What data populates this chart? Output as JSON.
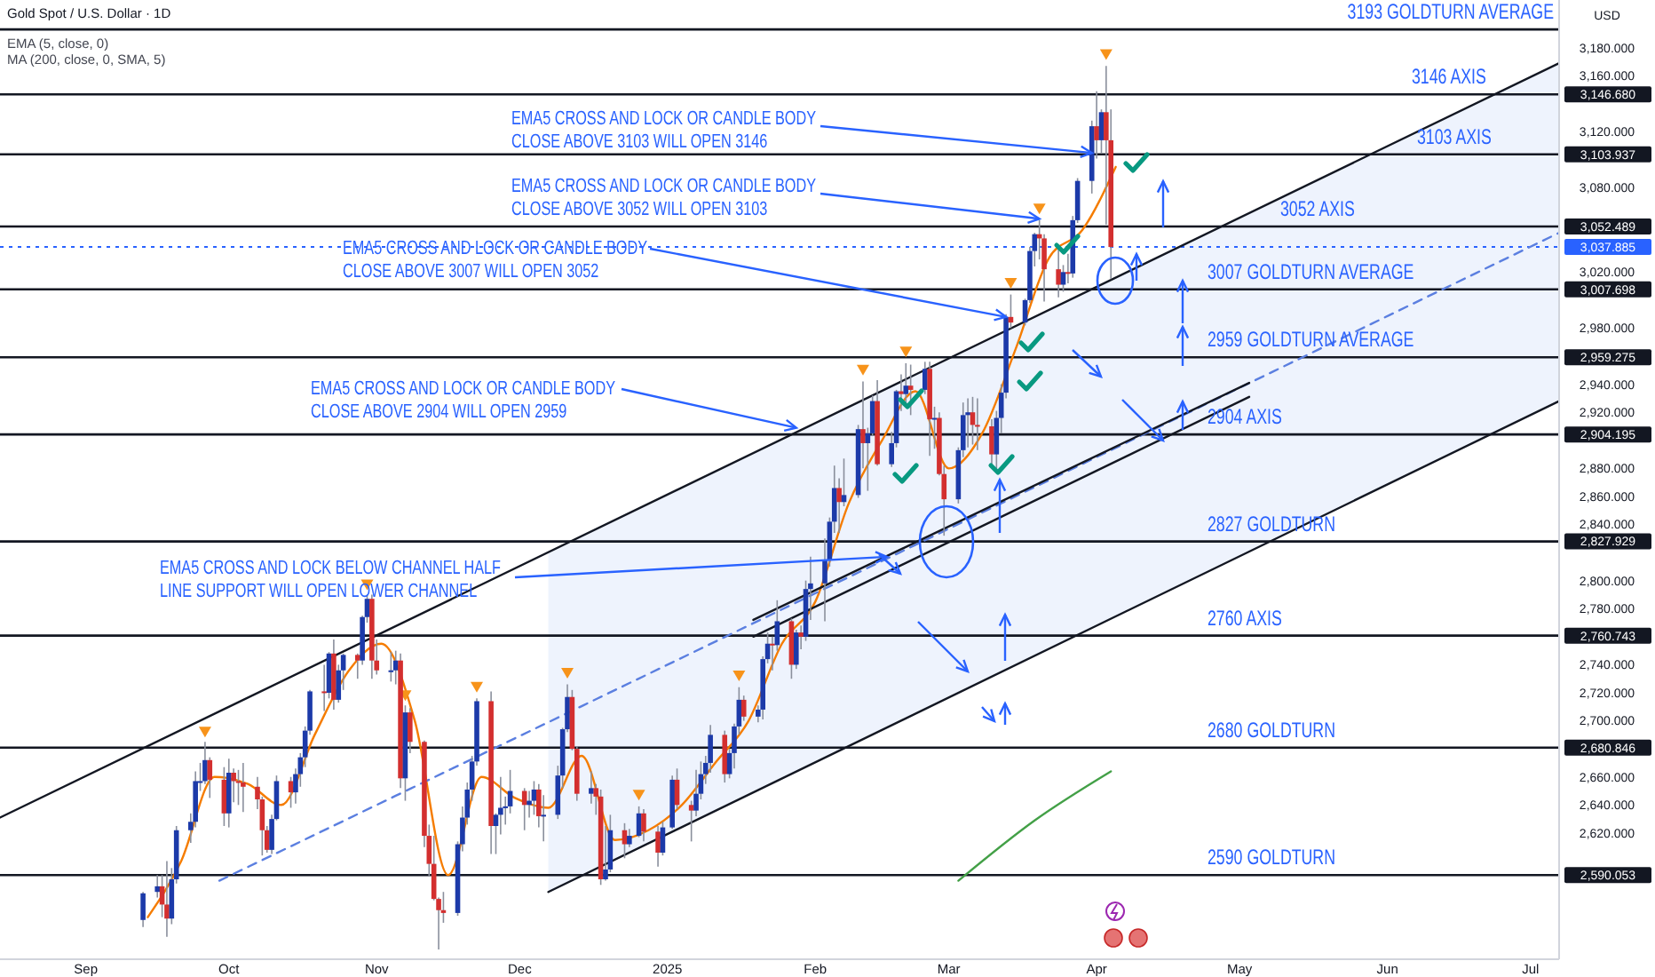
{
  "chart_data": {
    "type": "candlestick",
    "title": "Gold Spot / U.S. Dollar · 1D",
    "annotations": [
      "EMA (5, close, 0)",
      "MA (200, close, 0, SMA, 5)",
      {
        "text": "EMA5 CROSS AND LOCK OR CANDLE BODY\nCLOSE ABOVE 3103 WILL OPEN 3146",
        "x": "2025-03-31",
        "y": 3105
      },
      {
        "text": "EMA5 CROSS AND LOCK OR CANDLE BODY\nCLOSE ABOVE 3052 WILL OPEN 3103",
        "x": "2025-03-20",
        "y": 3058
      },
      {
        "text": "EMA5 CROSS AND LOCK OR CANDLE BODY\nCLOSE ABOVE 3007 WILL OPEN 3052",
        "x": "2025-03-13",
        "y": 2988
      },
      {
        "text": "EMA5 CROSS AND LOCK OR CANDLE BODY\nCLOSE ABOVE 2904 WILL OPEN 2959",
        "x": "2025-01-28",
        "y": 2909
      },
      {
        "text": "EMA5 CROSS AND LOCK BELOW CHANNEL HALF\nLINE SUPPORT WILL OPEN LOWER CHANNEL",
        "x": "2025-02-16",
        "y": 2817
      }
    ],
    "x": [
      "2024-09-13",
      "2024-09-16",
      "2024-09-17",
      "2024-09-18",
      "2024-09-19",
      "2024-09-20",
      "2024-09-23",
      "2024-09-24",
      "2024-09-25",
      "2024-09-26",
      "2024-09-27",
      "2024-09-30",
      "2024-10-01",
      "2024-10-02",
      "2024-10-03",
      "2024-10-04",
      "2024-10-07",
      "2024-10-08",
      "2024-10-09",
      "2024-10-10",
      "2024-10-11",
      "2024-10-14",
      "2024-10-15",
      "2024-10-16",
      "2024-10-17",
      "2024-10-18",
      "2024-10-21",
      "2024-10-22",
      "2024-10-23",
      "2024-10-24",
      "2024-10-25",
      "2024-10-28",
      "2024-10-29",
      "2024-10-30",
      "2024-10-31",
      "2024-11-01",
      "2024-11-04",
      "2024-11-05",
      "2024-11-06",
      "2024-11-07",
      "2024-11-08",
      "2024-11-11",
      "2024-11-12",
      "2024-11-13",
      "2024-11-14",
      "2024-11-15",
      "2024-11-18",
      "2024-11-19",
      "2024-11-20",
      "2024-11-21",
      "2024-11-22",
      "2024-11-25",
      "2024-11-26",
      "2024-11-27",
      "2024-11-28",
      "2024-11-29",
      "2024-12-02",
      "2024-12-03",
      "2024-12-04",
      "2024-12-05",
      "2024-12-06",
      "2024-12-09",
      "2024-12-10",
      "2024-12-11",
      "2024-12-12",
      "2024-12-13",
      "2024-12-16",
      "2024-12-17",
      "2024-12-18",
      "2024-12-19",
      "2024-12-20",
      "2024-12-23",
      "2024-12-24",
      "2024-12-26",
      "2024-12-27",
      "2024-12-30",
      "2024-12-31",
      "2025-01-02",
      "2025-01-03",
      "2025-01-06",
      "2025-01-07",
      "2025-01-08",
      "2025-01-09",
      "2025-01-10",
      "2025-01-13",
      "2025-01-14",
      "2025-01-15",
      "2025-01-16",
      "2025-01-17",
      "2025-01-20",
      "2025-01-21",
      "2025-01-22",
      "2025-01-23",
      "2025-01-24",
      "2025-01-27",
      "2025-01-28",
      "2025-01-29",
      "2025-01-30",
      "2025-01-31",
      "2025-02-03",
      "2025-02-04",
      "2025-02-05",
      "2025-02-06",
      "2025-02-07",
      "2025-02-10",
      "2025-02-11",
      "2025-02-12",
      "2025-02-13",
      "2025-02-14",
      "2025-02-17",
      "2025-02-18",
      "2025-02-19",
      "2025-02-20",
      "2025-02-21",
      "2025-02-24",
      "2025-02-25",
      "2025-02-26",
      "2025-02-27",
      "2025-02-28",
      "2025-03-03",
      "2025-03-04",
      "2025-03-05",
      "2025-03-06",
      "2025-03-07",
      "2025-03-10",
      "2025-03-11",
      "2025-03-12",
      "2025-03-13",
      "2025-03-14",
      "2025-03-17",
      "2025-03-18",
      "2025-03-19",
      "2025-03-20",
      "2025-03-21",
      "2025-03-24",
      "2025-03-25",
      "2025-03-26",
      "2025-03-27",
      "2025-03-28",
      "2025-03-31",
      "2025-04-01",
      "2025-04-02",
      "2025-04-03",
      "2025-04-04"
    ],
    "ohlc": [
      [
        2558,
        2578,
        2553,
        2577
      ],
      [
        2578,
        2590,
        2574,
        2582
      ],
      [
        2582,
        2590,
        2560,
        2569
      ],
      [
        2569,
        2600,
        2546,
        2559
      ],
      [
        2559,
        2595,
        2555,
        2587
      ],
      [
        2587,
        2625,
        2584,
        2622
      ],
      [
        2622,
        2634,
        2613,
        2628
      ],
      [
        2628,
        2664,
        2624,
        2657
      ],
      [
        2657,
        2670,
        2650,
        2657
      ],
      [
        2657,
        2685,
        2655,
        2672
      ],
      [
        2672,
        2674,
        2645,
        2658
      ],
      [
        2658,
        2667,
        2625,
        2634
      ],
      [
        2634,
        2673,
        2624,
        2663
      ],
      [
        2663,
        2666,
        2642,
        2657
      ],
      [
        2657,
        2665,
        2640,
        2656
      ],
      [
        2656,
        2670,
        2635,
        2653
      ],
      [
        2653,
        2660,
        2637,
        2644
      ],
      [
        2644,
        2646,
        2604,
        2622
      ],
      [
        2622,
        2625,
        2606,
        2608
      ],
      [
        2608,
        2633,
        2605,
        2630
      ],
      [
        2630,
        2661,
        2629,
        2657
      ],
      [
        2657,
        2660,
        2638,
        2649
      ],
      [
        2649,
        2666,
        2641,
        2662
      ],
      [
        2662,
        2677,
        2653,
        2674
      ],
      [
        2674,
        2696,
        2667,
        2693
      ],
      [
        2693,
        2722,
        2690,
        2721
      ],
      [
        2721,
        2740,
        2707,
        2720
      ],
      [
        2720,
        2749,
        2716,
        2748
      ],
      [
        2748,
        2758,
        2708,
        2715
      ],
      [
        2715,
        2740,
        2713,
        2736
      ],
      [
        2736,
        2748,
        2722,
        2747
      ],
      [
        2747,
        2748,
        2730,
        2743
      ],
      [
        2743,
        2775,
        2740,
        2774
      ],
      [
        2774,
        2790,
        2770,
        2787
      ],
      [
        2787,
        2790,
        2730,
        2743
      ],
      [
        2743,
        2758,
        2733,
        2736
      ],
      [
        2736,
        2749,
        2728,
        2736
      ],
      [
        2736,
        2750,
        2726,
        2743
      ],
      [
        2743,
        2748,
        2652,
        2659
      ],
      [
        2659,
        2711,
        2643,
        2706
      ],
      [
        2706,
        2709,
        2677,
        2685
      ],
      [
        2685,
        2686,
        2610,
        2618
      ],
      [
        2618,
        2626,
        2589,
        2598
      ],
      [
        2598,
        2618,
        2572,
        2573
      ],
      [
        2573,
        2574,
        2537,
        2565
      ],
      [
        2565,
        2578,
        2556,
        2563
      ],
      [
        2563,
        2614,
        2561,
        2612
      ],
      [
        2612,
        2639,
        2607,
        2631
      ],
      [
        2631,
        2656,
        2626,
        2651
      ],
      [
        2651,
        2675,
        2643,
        2671
      ],
      [
        2671,
        2716,
        2668,
        2714
      ],
      [
        2714,
        2721,
        2605,
        2625
      ],
      [
        2625,
        2634,
        2605,
        2633
      ],
      [
        2633,
        2660,
        2619,
        2638
      ],
      [
        2638,
        2646,
        2626,
        2639
      ],
      [
        2639,
        2665,
        2634,
        2650
      ],
      [
        2650,
        2652,
        2622,
        2640
      ],
      [
        2640,
        2650,
        2631,
        2643
      ],
      [
        2643,
        2657,
        2633,
        2651
      ],
      [
        2651,
        2655,
        2624,
        2632
      ],
      [
        2632,
        2647,
        2614,
        2633
      ],
      [
        2633,
        2668,
        2630,
        2661
      ],
      [
        2661,
        2695,
        2652,
        2694
      ],
      [
        2694,
        2726,
        2692,
        2717
      ],
      [
        2717,
        2722,
        2679,
        2680
      ],
      [
        2680,
        2682,
        2643,
        2648
      ],
      [
        2648,
        2664,
        2641,
        2652
      ],
      [
        2652,
        2655,
        2633,
        2646
      ],
      [
        2646,
        2651,
        2583,
        2587
      ],
      [
        2587,
        2625,
        2586,
        2594
      ],
      [
        2594,
        2633,
        2592,
        2622
      ],
      [
        2622,
        2627,
        2602,
        2612
      ],
      [
        2612,
        2623,
        2610,
        2618
      ],
      [
        2618,
        2639,
        2617,
        2634
      ],
      [
        2634,
        2637,
        2614,
        2621
      ],
      [
        2621,
        2625,
        2596,
        2606
      ],
      [
        2606,
        2628,
        2604,
        2624
      ],
      [
        2624,
        2661,
        2623,
        2658
      ],
      [
        2658,
        2666,
        2637,
        2640
      ],
      [
        2640,
        2643,
        2614,
        2636
      ],
      [
        2636,
        2665,
        2632,
        2648
      ],
      [
        2648,
        2671,
        2644,
        2662
      ],
      [
        2662,
        2675,
        2655,
        2670
      ],
      [
        2670,
        2697,
        2663,
        2690
      ],
      [
        2690,
        2693,
        2656,
        2662
      ],
      [
        2662,
        2680,
        2659,
        2677
      ],
      [
        2677,
        2698,
        2666,
        2696
      ],
      [
        2696,
        2724,
        2690,
        2715
      ],
      [
        2715,
        2718,
        2700,
        2703
      ],
      [
        2703,
        2711,
        2699,
        2708
      ],
      [
        2708,
        2746,
        2701,
        2744
      ],
      [
        2744,
        2763,
        2741,
        2755
      ],
      [
        2755,
        2760,
        2736,
        2754
      ],
      [
        2754,
        2786,
        2750,
        2771
      ],
      [
        2771,
        2773,
        2730,
        2740
      ],
      [
        2740,
        2765,
        2737,
        2763
      ],
      [
        2763,
        2768,
        2751,
        2760
      ],
      [
        2760,
        2800,
        2757,
        2794
      ],
      [
        2794,
        2817,
        2772,
        2798
      ],
      [
        2798,
        2830,
        2771,
        2815
      ],
      [
        2815,
        2845,
        2810,
        2842
      ],
      [
        2842,
        2882,
        2834,
        2866
      ],
      [
        2866,
        2873,
        2834,
        2856
      ],
      [
        2856,
        2887,
        2853,
        2861
      ],
      [
        2861,
        2911,
        2859,
        2908
      ],
      [
        2908,
        2942,
        2880,
        2898
      ],
      [
        2898,
        2909,
        2864,
        2905
      ],
      [
        2905,
        2932,
        2903,
        2928
      ],
      [
        2928,
        2943,
        2882,
        2883
      ],
      [
        2883,
        2906,
        2881,
        2898
      ],
      [
        2898,
        2936,
        2895,
        2935
      ],
      [
        2935,
        2947,
        2921,
        2933
      ],
      [
        2933,
        2955,
        2925,
        2939
      ],
      [
        2939,
        2954,
        2918,
        2936
      ],
      [
        2936,
        2956,
        2933,
        2951
      ],
      [
        2951,
        2956,
        2889,
        2915
      ],
      [
        2915,
        2924,
        2894,
        2916
      ],
      [
        2916,
        2920,
        2875,
        2876
      ],
      [
        2876,
        2882,
        2832,
        2858
      ],
      [
        2858,
        2895,
        2855,
        2893
      ],
      [
        2893,
        2927,
        2888,
        2918
      ],
      [
        2918,
        2930,
        2895,
        2920
      ],
      [
        2920,
        2931,
        2897,
        2911
      ],
      [
        2911,
        2930,
        2893,
        2910
      ],
      [
        2910,
        2915,
        2880,
        2890
      ],
      [
        2890,
        2921,
        2880,
        2916
      ],
      [
        2916,
        2940,
        2905,
        2934
      ],
      [
        2934,
        2990,
        2930,
        2988
      ],
      [
        2988,
        3004,
        2980,
        2984
      ],
      [
        2984,
        3001,
        2982,
        3000
      ],
      [
        3000,
        3038,
        2998,
        3035
      ],
      [
        3035,
        3048,
        3024,
        3047
      ],
      [
        3047,
        3057,
        3029,
        3044
      ],
      [
        3044,
        3047,
        2999,
        3022
      ],
      [
        3022,
        3037,
        3002,
        3011
      ],
      [
        3011,
        3025,
        3006,
        3020
      ],
      [
        3020,
        3033,
        3012,
        3019
      ],
      [
        3019,
        3060,
        3016,
        3057
      ],
      [
        3057,
        3087,
        3055,
        3085
      ],
      [
        3085,
        3128,
        3076,
        3124
      ],
      [
        3124,
        3149,
        3101,
        3114
      ],
      [
        3114,
        3136,
        3105,
        3134
      ],
      [
        3134,
        3167,
        3054,
        3114
      ],
      [
        3114,
        3136,
        3015,
        3037.885
      ]
    ],
    "series": [
      {
        "type": "line",
        "color": "#f57c00",
        "x": [
          "2024-09-14",
          "2024-09-21",
          "2024-09-28",
          "2024-10-05",
          "2024-10-12",
          "2024-10-19",
          "2024-10-26",
          "2024-11-02",
          "2024-11-09",
          "2024-11-16",
          "2024-11-23",
          "2024-11-30",
          "2024-12-07",
          "2024-12-14",
          "2024-12-21",
          "2024-12-28",
          "2025-01-04",
          "2025-01-11",
          "2025-01-18",
          "2025-01-25",
          "2025-02-01",
          "2025-02-08",
          "2025-02-15",
          "2025-02-22",
          "2025-03-01",
          "2025-03-08",
          "2025-03-15",
          "2025-03-22",
          "2025-03-29",
          "2025-04-05"
        ],
        "values": [
          2560,
          2600,
          2660,
          2655,
          2640,
          2690,
          2735,
          2755,
          2700,
          2590,
          2660,
          2645,
          2638,
          2675,
          2615,
          2622,
          2640,
          2670,
          2700,
          2755,
          2785,
          2855,
          2900,
          2935,
          2880,
          2905,
          2965,
          3030,
          3050,
          3095
        ]
      },
      {
        "type": "line",
        "color": "#43a047",
        "x": [
          "2025-03-03",
          "2025-03-19",
          "2025-04-04"
        ],
        "values": [
          2586,
          2629,
          2664
        ]
      },
      {
        "type": "line",
        "color": "#131722",
        "x": [
          "2024-08-14",
          "2025-07-07"
        ],
        "values": [
          2631,
          3169
        ]
      },
      {
        "type": "line",
        "color": "#131722",
        "x": [
          "2024-12-07",
          "2025-07-07"
        ],
        "values": [
          2578,
          2928
        ]
      },
      {
        "type": "line",
        "color": "#5b7fe0",
        "line_style": "dashed",
        "x": [
          "2024-09-29",
          "2024-12-07",
          "2025-07-07"
        ],
        "values": [
          2586,
          2699,
          3048
        ],
        "lower": [
          null,
          2578,
          2928
        ],
        "upper": [
          null,
          2820,
          3169
        ]
      },
      {
        "type": "line",
        "color": "#131722",
        "x": [
          "2025-01-19",
          "2025-05-03"
        ],
        "values": [
          2772,
          2941
        ]
      },
      {
        "type": "line",
        "color": "#131722",
        "x": [
          "2025-01-19",
          "2025-05-03"
        ],
        "values": [
          2760,
          2931
        ]
      },
      {
        "type": "scatter",
        "color": "#f7931a",
        "marker": "triangle",
        "x": [
          "2024-09-26",
          "2024-10-30",
          "2024-11-07",
          "2024-11-22",
          "2024-12-11",
          "2024-12-26",
          "2025-01-16",
          "2025-02-11",
          "2025-02-20",
          "2025-03-14",
          "2025-03-20",
          "2025-04-03"
        ],
        "values": [
          2692,
          2797,
          2718,
          2724,
          2734,
          2647,
          2732,
          2950,
          2963,
          3012,
          3065,
          3175
        ]
      }
    ],
    "ref_lines": [
      {
        "axis": "y",
        "value": 3193,
        "label": "3193 GOLDTURN AVERAGE"
      },
      {
        "axis": "y",
        "value": 3146.68,
        "label": "3146 AXIS"
      },
      {
        "axis": "y",
        "value": 3103.937,
        "label": "3103 AXIS"
      },
      {
        "axis": "y",
        "value": 3052.489,
        "label": "3052 AXIS"
      },
      {
        "axis": "y",
        "value": 3007.698,
        "label": "3007 GOLDTURN AVERAGE"
      },
      {
        "axis": "y",
        "value": 2959.275,
        "label": "2959 GOLDTURN AVERAGE"
      },
      {
        "axis": "y",
        "value": 2904.195,
        "label": "2904 AXIS"
      },
      {
        "axis": "y",
        "value": 2827.929,
        "label": "2827 GOLDTURN"
      },
      {
        "axis": "y",
        "value": 2760.743,
        "label": "2760 AXIS"
      },
      {
        "axis": "y",
        "value": 2680.846,
        "label": "2680 GOLDTURN"
      },
      {
        "axis": "y",
        "value": 2590.053,
        "label": "2590 GOLDTURN"
      },
      {
        "axis": "y",
        "value": 3037.885,
        "label": null,
        "color": "#2962ff",
        "line_style": "dotted"
      }
    ],
    "xlim": [
      "2024-08-14",
      "2025-07-07"
    ],
    "xticks": [
      {
        "value": "2024-09-01",
        "label": "Sep"
      },
      {
        "value": "2024-10-01",
        "label": "Oct"
      },
      {
        "value": "2024-11-01",
        "label": "Nov"
      },
      {
        "value": "2024-12-01",
        "label": "Dec"
      },
      {
        "value": "2025-01-01",
        "label": "2025"
      },
      {
        "value": "2025-02-01",
        "label": "Feb"
      },
      {
        "value": "2025-03-01",
        "label": "Mar"
      },
      {
        "value": "2025-04-01",
        "label": "Apr"
      },
      {
        "value": "2025-05-01",
        "label": "May"
      },
      {
        "value": "2025-06-01",
        "label": "Jun"
      },
      {
        "value": "2025-07-01",
        "label": "Jul"
      }
    ],
    "ylim": [
      2530,
      3214
    ],
    "grid": false,
    "yticks": [
      {
        "value": 2590.053,
        "label": "2,590.053"
      },
      {
        "value": 2620,
        "label": "2,620.000"
      },
      {
        "value": 2640,
        "label": "2,640.000"
      },
      {
        "value": 2660,
        "label": "2,660.000"
      },
      {
        "value": 2680.846,
        "label": "2,680.846"
      },
      {
        "value": 2700,
        "label": "2,700.000"
      },
      {
        "value": 2720,
        "label": "2,720.000"
      },
      {
        "value": 2740,
        "label": "2,740.000"
      },
      {
        "value": 2760.743,
        "label": "2,760.743"
      },
      {
        "value": 2780,
        "label": "2,780.000"
      },
      {
        "value": 2800,
        "label": "2,800.000"
      },
      {
        "value": 2827.929,
        "label": "2,827.929"
      },
      {
        "value": 2840,
        "label": "2,840.000"
      },
      {
        "value": 2860,
        "label": "2,860.000"
      },
      {
        "value": 2880,
        "label": "2,880.000"
      },
      {
        "value": 2904.195,
        "label": "2,904.195"
      },
      {
        "value": 2920,
        "label": "2,920.000"
      },
      {
        "value": 2940,
        "label": "2,940.000"
      },
      {
        "value": 2959.275,
        "label": "2,959.275"
      },
      {
        "value": 2980,
        "label": "2,980.000"
      },
      {
        "value": 3007.698,
        "label": "3,007.698"
      },
      {
        "value": 3020,
        "label": "3,020.000"
      },
      {
        "value": 3037.885,
        "label": "3,037.885"
      },
      {
        "value": 3052.489,
        "label": "3,052.489"
      },
      {
        "value": 3080,
        "label": "3,080.000"
      },
      {
        "value": 3103.937,
        "label": "3,103.937"
      },
      {
        "value": 3120,
        "label": "3,120.000"
      },
      {
        "value": 3146.68,
        "label": "3,146.680"
      },
      {
        "value": 3160,
        "label": "3,160.000"
      },
      {
        "value": 3180,
        "label": "3,180.000"
      }
    ],
    "ylabel": "USD"
  }
}
